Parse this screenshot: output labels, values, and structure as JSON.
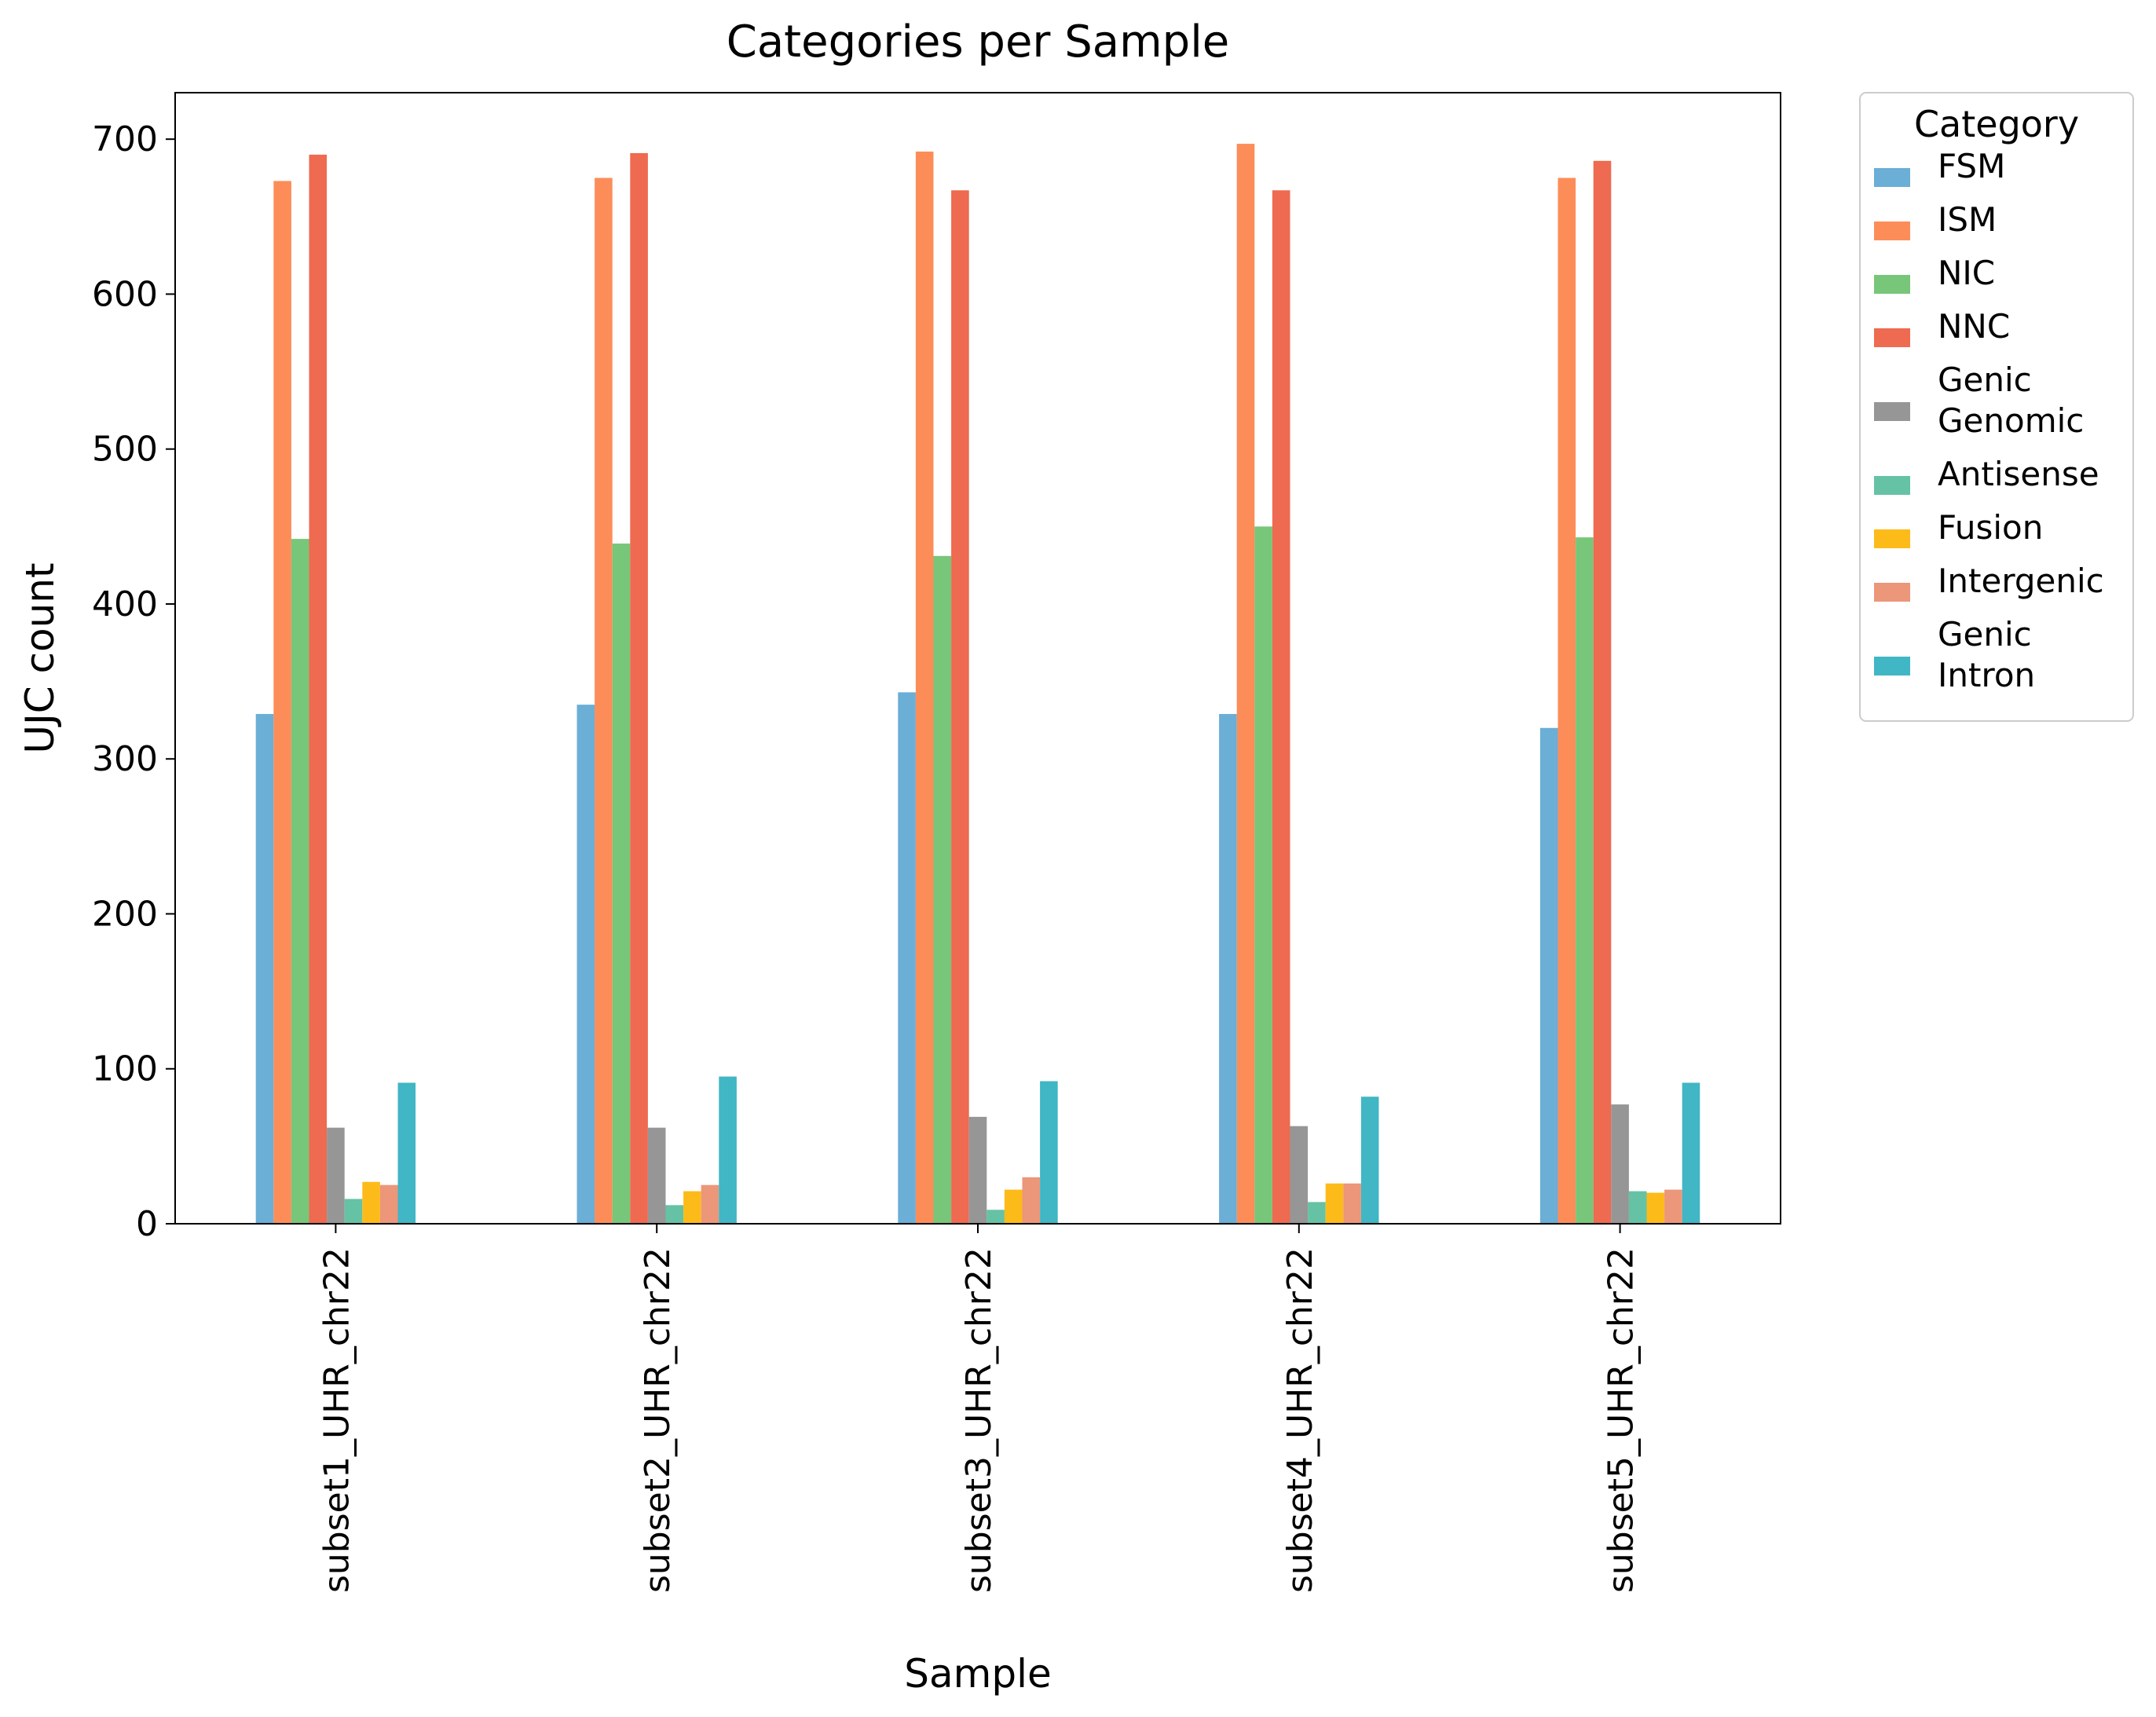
{
  "chart_data": {
    "type": "bar",
    "title": "Categories per Sample",
    "xlabel": "Sample",
    "ylabel": "UJC count",
    "ylim": [
      0,
      730
    ],
    "yticks": [
      0,
      100,
      200,
      300,
      400,
      500,
      600,
      700
    ],
    "grid": false,
    "legend": {
      "title": "Category",
      "placement": "outside-right-top"
    },
    "categories": [
      "subset1_UHR_chr22",
      "subset2_UHR_chr22",
      "subset3_UHR_chr22",
      "subset4_UHR_chr22",
      "subset5_UHR_chr22"
    ],
    "series": [
      {
        "name": "FSM",
        "label_lines": [
          "FSM"
        ],
        "color": "#6baed6",
        "values": [
          329,
          335,
          343,
          329,
          320
        ]
      },
      {
        "name": "ISM",
        "label_lines": [
          "ISM"
        ],
        "color": "#fc8d59",
        "values": [
          673,
          675,
          692,
          697,
          675
        ]
      },
      {
        "name": "NIC",
        "label_lines": [
          "NIC"
        ],
        "color": "#78c679",
        "values": [
          442,
          439,
          431,
          450,
          443
        ]
      },
      {
        "name": "NNC",
        "label_lines": [
          "NNC"
        ],
        "color": "#ee6a50",
        "values": [
          690,
          691,
          667,
          667,
          686
        ]
      },
      {
        "name": "Genic Genomic",
        "label_lines": [
          "Genic",
          "Genomic"
        ],
        "color": "#969696",
        "values": [
          62,
          62,
          69,
          63,
          77
        ]
      },
      {
        "name": "Antisense",
        "label_lines": [
          "Antisense"
        ],
        "color": "#66c2a4",
        "values": [
          16,
          12,
          9,
          14,
          21
        ]
      },
      {
        "name": "Fusion",
        "label_lines": [
          "Fusion"
        ],
        "color": "#fdbb1a",
        "values": [
          27,
          21,
          22,
          26,
          20
        ]
      },
      {
        "name": "Intergenic",
        "label_lines": [
          "Intergenic"
        ],
        "color": "#ec967a",
        "values": [
          25,
          25,
          30,
          26,
          22
        ]
      },
      {
        "name": "Genic Intron",
        "label_lines": [
          "Genic",
          "Intron"
        ],
        "color": "#41b6c4",
        "values": [
          91,
          95,
          92,
          82,
          91
        ]
      }
    ]
  }
}
